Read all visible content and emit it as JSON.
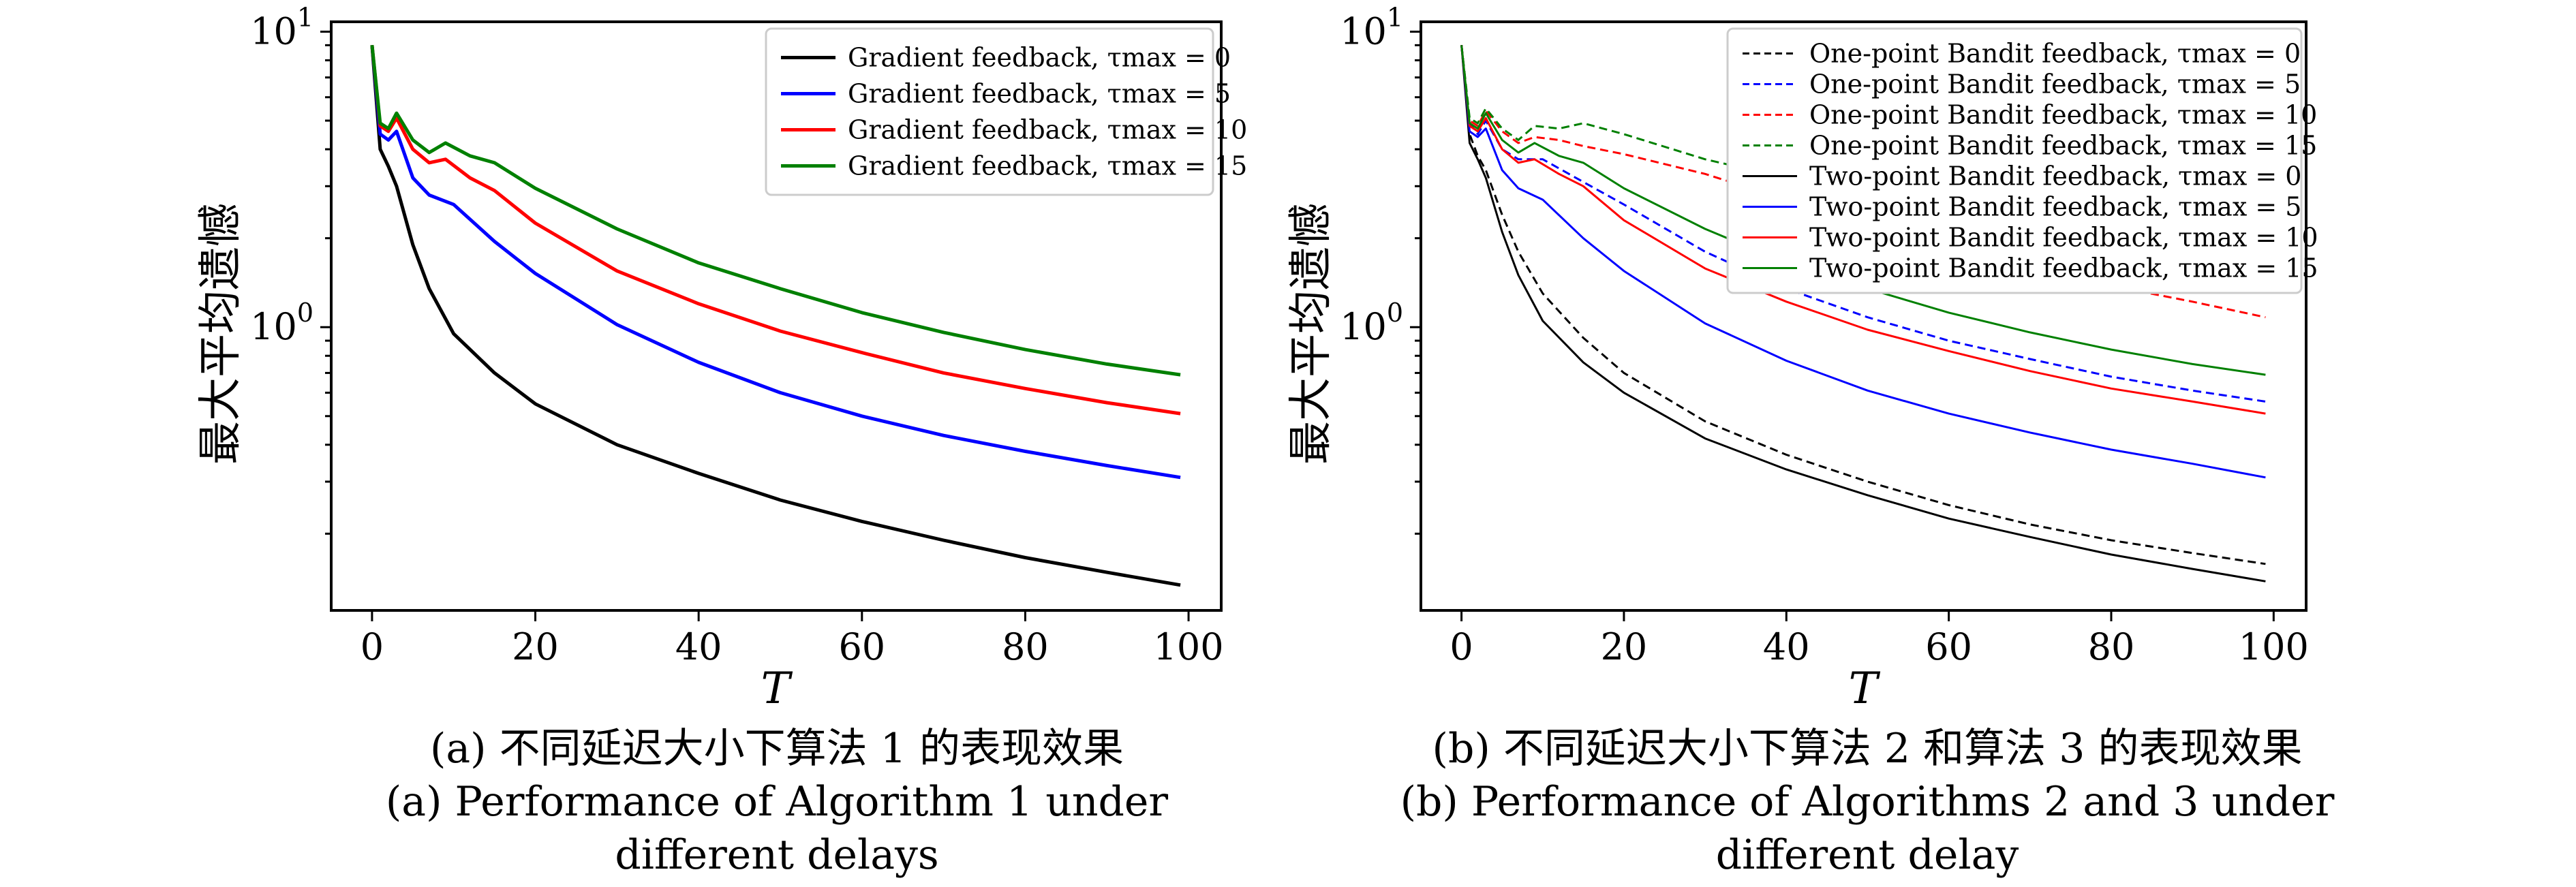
{
  "panels": [
    {
      "id": "a",
      "ylabel": "最大平均遗憾",
      "xlabel": "T",
      "caption_cn": "(a) 不同延迟大小下算法 1 的表现效果",
      "caption_en_1": "(a) Performance of Algorithm 1 under",
      "caption_en_2": "different delays"
    },
    {
      "id": "b",
      "ylabel": "最大平均遗憾",
      "xlabel": "T",
      "caption_cn": "(b) 不同延迟大小下算法 2 和算法 3 的表现效果",
      "caption_en_1": "(b) Performance of Algorithms 2 and 3 under",
      "caption_en_2": "different delay"
    }
  ],
  "chart_data": [
    {
      "type": "line",
      "xlabel": "T",
      "ylabel": "最大平均遗憾",
      "xlim": [
        -5,
        104
      ],
      "ylim": [
        0.11,
        10.8
      ],
      "yscale": "log",
      "xticks": [
        0,
        20,
        40,
        60,
        80,
        100
      ],
      "yticks": [
        1,
        10
      ],
      "ytick_labels": [
        "10^0",
        "10^1"
      ],
      "legend_position": "top-right",
      "series": [
        {
          "name": "Gradient feedback, τmax = 0",
          "color": "#000000",
          "dash": "solid",
          "x": [
            0,
            1,
            2,
            3,
            5,
            7,
            10,
            15,
            20,
            30,
            40,
            50,
            60,
            70,
            80,
            90,
            99
          ],
          "y": [
            9.0,
            4.0,
            3.5,
            3.0,
            1.9,
            1.35,
            0.95,
            0.7,
            0.55,
            0.4,
            0.32,
            0.26,
            0.22,
            0.19,
            0.166,
            0.148,
            0.134
          ]
        },
        {
          "name": "Gradient feedback, τmax = 5",
          "color": "#0000ff",
          "dash": "solid",
          "x": [
            0,
            1,
            2,
            3,
            5,
            7,
            10,
            15,
            20,
            30,
            40,
            50,
            60,
            70,
            80,
            90,
            99
          ],
          "y": [
            9.0,
            4.5,
            4.3,
            4.6,
            3.2,
            2.8,
            2.6,
            1.95,
            1.52,
            1.02,
            0.76,
            0.6,
            0.5,
            0.43,
            0.38,
            0.34,
            0.31
          ]
        },
        {
          "name": "Gradient feedback, τmax = 10",
          "color": "#ff0000",
          "dash": "solid",
          "x": [
            0,
            1,
            2,
            3,
            5,
            7,
            9,
            12,
            15,
            20,
            30,
            40,
            50,
            60,
            70,
            80,
            90,
            99
          ],
          "y": [
            9.0,
            4.8,
            4.6,
            5.1,
            4.0,
            3.6,
            3.7,
            3.2,
            2.9,
            2.25,
            1.55,
            1.2,
            0.97,
            0.82,
            0.7,
            0.62,
            0.555,
            0.51
          ]
        },
        {
          "name": "Gradient feedback, τmax = 15",
          "color": "#008000",
          "dash": "solid",
          "x": [
            0,
            1,
            2,
            3,
            5,
            7,
            9,
            12,
            15,
            20,
            30,
            40,
            50,
            60,
            70,
            80,
            90,
            99
          ],
          "y": [
            9.0,
            4.9,
            4.7,
            5.3,
            4.3,
            3.9,
            4.2,
            3.8,
            3.6,
            2.95,
            2.15,
            1.65,
            1.35,
            1.12,
            0.96,
            0.84,
            0.75,
            0.69
          ]
        }
      ]
    },
    {
      "type": "line",
      "xlabel": "T",
      "ylabel": "最大平均遗憾",
      "xlim": [
        -5,
        104
      ],
      "ylim": [
        0.11,
        10.8
      ],
      "yscale": "log",
      "xticks": [
        0,
        20,
        40,
        60,
        80,
        100
      ],
      "yticks": [
        1,
        10
      ],
      "ytick_labels": [
        "10^0",
        "10^1"
      ],
      "legend_position": "top-right",
      "series": [
        {
          "name": "One-point Bandit feedback, τmax = 0",
          "color": "#000000",
          "dash": "dashed",
          "x": [
            0,
            1,
            2,
            3,
            5,
            7,
            10,
            15,
            20,
            30,
            40,
            50,
            60,
            70,
            80,
            90,
            99
          ],
          "y": [
            9.0,
            4.5,
            3.8,
            3.4,
            2.4,
            1.8,
            1.3,
            0.92,
            0.7,
            0.48,
            0.37,
            0.3,
            0.25,
            0.215,
            0.19,
            0.172,
            0.158
          ]
        },
        {
          "name": "One-point Bandit feedback, τmax = 5",
          "color": "#0000ff",
          "dash": "dashed",
          "x": [
            0,
            1,
            2,
            3,
            5,
            7,
            10,
            15,
            20,
            30,
            40,
            50,
            60,
            70,
            80,
            90,
            99
          ],
          "y": [
            9.0,
            4.9,
            4.5,
            5.0,
            4.0,
            3.7,
            3.7,
            3.1,
            2.6,
            1.8,
            1.35,
            1.08,
            0.9,
            0.78,
            0.68,
            0.61,
            0.56
          ]
        },
        {
          "name": "One-point Bandit feedback, τmax = 10",
          "color": "#ff0000",
          "dash": "dashed",
          "x": [
            0,
            1,
            2,
            3,
            5,
            7,
            9,
            12,
            15,
            20,
            30,
            40,
            50,
            60,
            70,
            80,
            90,
            99
          ],
          "y": [
            9.0,
            5.0,
            4.8,
            5.4,
            4.6,
            4.2,
            4.4,
            4.3,
            4.1,
            3.85,
            3.3,
            2.7,
            2.2,
            1.85,
            1.58,
            1.38,
            1.22,
            1.08
          ]
        },
        {
          "name": "One-point Bandit feedback, τmax = 15",
          "color": "#008000",
          "dash": "dashed",
          "x": [
            0,
            1,
            2,
            3,
            5,
            7,
            9,
            12,
            15,
            20,
            30,
            40,
            50,
            60,
            70,
            80,
            90,
            99
          ],
          "y": [
            9.0,
            5.1,
            4.9,
            5.5,
            4.7,
            4.3,
            4.8,
            4.7,
            4.9,
            4.5,
            3.7,
            3.2,
            2.8,
            2.5,
            2.2,
            2.0,
            1.8,
            1.65
          ]
        },
        {
          "name": "Two-point Bandit feedback, τmax = 0",
          "color": "#000000",
          "dash": "solid",
          "x": [
            0,
            1,
            2,
            3,
            5,
            7,
            10,
            15,
            20,
            30,
            40,
            50,
            60,
            70,
            80,
            90,
            99
          ],
          "y": [
            9.0,
            4.2,
            3.7,
            3.2,
            2.1,
            1.5,
            1.05,
            0.76,
            0.6,
            0.42,
            0.33,
            0.27,
            0.225,
            0.195,
            0.17,
            0.152,
            0.138
          ]
        },
        {
          "name": "Two-point Bandit feedback, τmax = 5",
          "color": "#0000ff",
          "dash": "solid",
          "x": [
            0,
            1,
            2,
            3,
            5,
            7,
            10,
            15,
            20,
            30,
            40,
            50,
            60,
            70,
            80,
            90,
            99
          ],
          "y": [
            9.0,
            4.6,
            4.4,
            4.7,
            3.4,
            2.95,
            2.7,
            2.0,
            1.55,
            1.03,
            0.77,
            0.61,
            0.51,
            0.44,
            0.385,
            0.345,
            0.31
          ]
        },
        {
          "name": "Two-point Bandit feedback, τmax = 10",
          "color": "#ff0000",
          "dash": "solid",
          "x": [
            0,
            1,
            2,
            3,
            5,
            7,
            9,
            12,
            15,
            20,
            30,
            40,
            50,
            60,
            70,
            80,
            90,
            99
          ],
          "y": [
            9.0,
            4.8,
            4.6,
            5.1,
            4.0,
            3.6,
            3.7,
            3.3,
            3.0,
            2.3,
            1.58,
            1.22,
            0.98,
            0.83,
            0.71,
            0.62,
            0.56,
            0.51
          ]
        },
        {
          "name": "Two-point Bandit feedback, τmax = 15",
          "color": "#008000",
          "dash": "solid",
          "x": [
            0,
            1,
            2,
            3,
            5,
            7,
            9,
            12,
            15,
            20,
            30,
            40,
            50,
            60,
            70,
            80,
            90,
            99
          ],
          "y": [
            9.0,
            4.9,
            4.7,
            5.3,
            4.3,
            3.9,
            4.2,
            3.8,
            3.6,
            2.95,
            2.15,
            1.65,
            1.35,
            1.12,
            0.96,
            0.84,
            0.75,
            0.69
          ]
        }
      ]
    }
  ]
}
